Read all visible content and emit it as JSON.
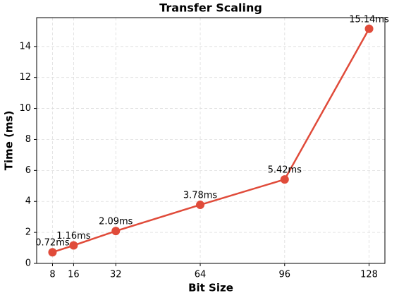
{
  "chart_data": {
    "type": "line",
    "title": "Transfer Scaling",
    "x_label": "Bit Size",
    "y_label": "Time (ms)",
    "x": [
      8,
      16,
      32,
      64,
      96,
      128
    ],
    "series": [
      {
        "color": "#e04b3a",
        "values": [
          0.72,
          1.16,
          2.09,
          3.78,
          5.42,
          15.14
        ],
        "value_labels": [
          "0.72ms",
          "1.16ms",
          "2.09ms",
          "3.78ms",
          "5.42ms",
          "15.14ms"
        ]
      }
    ],
    "xlim": [
      2,
      134
    ],
    "xticks": [
      8,
      16,
      32,
      64,
      96,
      128
    ],
    "ylim": [
      0,
      15.86
    ],
    "yticks": [
      0,
      2,
      4,
      6,
      8,
      10,
      12,
      14
    ],
    "grid": true
  }
}
